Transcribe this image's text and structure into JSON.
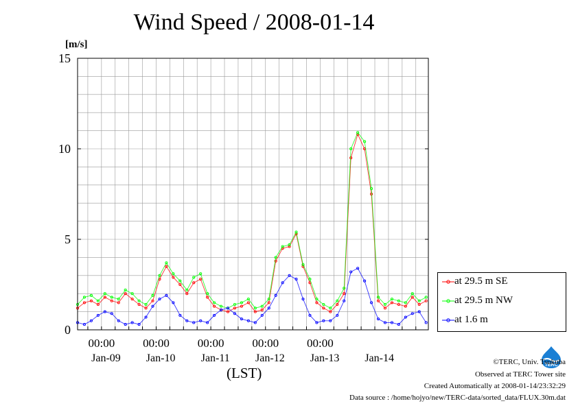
{
  "chart_data": {
    "type": "line",
    "title": "Wind Speed / 2008-01-14",
    "ylabel": "[m/s]",
    "xlabel": "(LST)",
    "ylim": [
      0,
      15
    ],
    "yticks": [
      "0",
      "5",
      "10",
      "15"
    ],
    "xlim": [
      "2008-01-08T13:30",
      "2008-01-14T23:30"
    ],
    "time_tick_labels": [
      "00:00",
      "00:00",
      "00:00",
      "00:00",
      "00:00"
    ],
    "date_labels": [
      "Jan-09",
      "Jan-10",
      "Jan-11",
      "Jan-12",
      "Jan-13",
      "Jan-14"
    ],
    "grid": true,
    "legend_position": "lower-right-outside",
    "x_hours": [
      0,
      3,
      6,
      9,
      12,
      15,
      18,
      21,
      24,
      27,
      30,
      33,
      36,
      39,
      42,
      45,
      48,
      51,
      54,
      57,
      60,
      63,
      66,
      69,
      72,
      75,
      78,
      81,
      84,
      87,
      90,
      93,
      96,
      99,
      102,
      105,
      108,
      111,
      114,
      117,
      120,
      123,
      126,
      129,
      132,
      135,
      138,
      141,
      144,
      147,
      150,
      153
    ],
    "series": [
      {
        "name": "at 29.5 m SE",
        "color": "#ff0000",
        "values": [
          1.2,
          1.5,
          1.6,
          1.4,
          1.8,
          1.6,
          1.5,
          2.0,
          1.7,
          1.4,
          1.2,
          1.6,
          2.8,
          3.5,
          2.9,
          2.5,
          2.0,
          2.6,
          2.8,
          1.8,
          1.3,
          1.1,
          1.0,
          1.2,
          1.3,
          1.5,
          1.0,
          1.1,
          1.5,
          3.8,
          4.5,
          4.6,
          5.3,
          3.5,
          2.6,
          1.5,
          1.2,
          1.0,
          1.4,
          2.0,
          9.5,
          10.8,
          10.0,
          7.5,
          1.6,
          1.2,
          1.5,
          1.4,
          1.3,
          1.8,
          1.4,
          1.6
        ]
      },
      {
        "name": "at 29.5 m NW",
        "color": "#00ff00",
        "values": [
          1.4,
          1.8,
          1.9,
          1.6,
          2.0,
          1.8,
          1.7,
          2.2,
          2.0,
          1.6,
          1.4,
          1.9,
          3.0,
          3.7,
          3.1,
          2.7,
          2.2,
          2.9,
          3.1,
          2.0,
          1.5,
          1.3,
          1.2,
          1.4,
          1.5,
          1.7,
          1.2,
          1.3,
          1.7,
          4.0,
          4.6,
          4.7,
          5.4,
          3.6,
          2.8,
          1.7,
          1.4,
          1.2,
          1.6,
          2.3,
          10.0,
          10.9,
          10.4,
          7.8,
          1.8,
          1.4,
          1.7,
          1.6,
          1.5,
          2.0,
          1.6,
          1.8
        ]
      },
      {
        "name": "at 1.6 m",
        "color": "#0000ff",
        "values": [
          0.4,
          0.3,
          0.5,
          0.8,
          1.0,
          0.9,
          0.5,
          0.3,
          0.4,
          0.3,
          0.7,
          1.3,
          1.7,
          1.9,
          1.5,
          0.8,
          0.5,
          0.4,
          0.5,
          0.4,
          0.8,
          1.1,
          1.2,
          0.9,
          0.6,
          0.5,
          0.4,
          0.8,
          1.2,
          1.9,
          2.6,
          3.0,
          2.8,
          1.7,
          0.8,
          0.4,
          0.5,
          0.5,
          0.8,
          1.6,
          3.2,
          3.4,
          2.7,
          1.5,
          0.6,
          0.4,
          0.4,
          0.3,
          0.7,
          0.9,
          1.0,
          0.4
        ]
      }
    ]
  },
  "credits": {
    "copyright": "©TERC, Univ. Tsukuba",
    "observed": "Observed at TERC Tower site",
    "created": "Created Automatically at 2008-01-14/23:32:29",
    "source": "Data source : /home/hojyo/new/TERC-data/sorted_data/FLUX.30m.dat"
  },
  "logo": {
    "text": "TERC",
    "color": "#1a7fd4"
  }
}
